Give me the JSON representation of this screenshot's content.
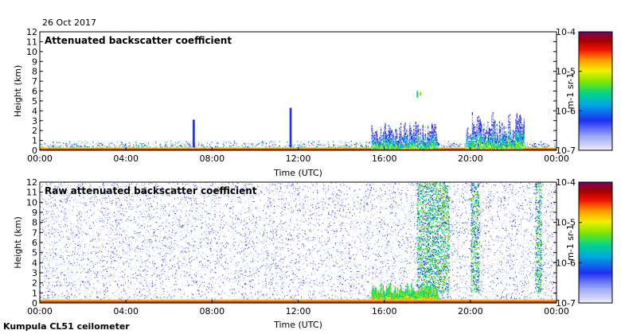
{
  "date_label": "26 Oct 2017",
  "footer_label": "Kumpula CL51 ceilometer",
  "chart_data": [
    {
      "type": "heatmap",
      "title": "Attenuated backscatter coefficient",
      "xlabel": "Time (UTC)",
      "ylabel": "Height (km)",
      "x_ticks": [
        "00:00",
        "04:00",
        "08:00",
        "12:00",
        "16:00",
        "20:00",
        "00:00"
      ],
      "y_ticks": [
        "0",
        "1",
        "2",
        "3",
        "4",
        "5",
        "6",
        "7",
        "8",
        "9",
        "10",
        "11",
        "12"
      ],
      "xlim_hours": [
        0,
        24
      ],
      "ylim_km": [
        0,
        12
      ],
      "colorbar": {
        "scale": "log",
        "ticks": [
          "10-4",
          "10-5",
          "10-6",
          "10-7"
        ],
        "range": [
          1e-07,
          0.0001
        ],
        "label": "m-1 sr-1"
      },
      "features": [
        {
          "desc": "surface aerosol layer",
          "t_start": 0,
          "t_end": 24,
          "top_km": 0.5
        },
        {
          "desc": "precipitation streak",
          "t_start": 7.1,
          "t_end": 7.2,
          "top_km": 3.1
        },
        {
          "desc": "precipitation streak",
          "t_start": 11.6,
          "t_end": 11.7,
          "top_km": 4.3
        },
        {
          "desc": "cloud",
          "t_start": 15.4,
          "t_end": 18.5,
          "top_km": 3.0
        },
        {
          "desc": "elevated cloud fragment",
          "t_start": 17.5,
          "t_end": 17.8,
          "top_km": 6.0
        },
        {
          "desc": "cloud",
          "t_start": 19.8,
          "t_end": 22.5,
          "top_km": 3.9
        }
      ]
    },
    {
      "type": "heatmap",
      "title": "Raw attenuated backscatter coefficient",
      "xlabel": "Time (UTC)",
      "ylabel": "Height (km)",
      "x_ticks": [
        "00:00",
        "04:00",
        "08:00",
        "12:00",
        "16:00",
        "20:00",
        "00:00"
      ],
      "y_ticks": [
        "0",
        "1",
        "2",
        "3",
        "4",
        "5",
        "6",
        "7",
        "8",
        "9",
        "10",
        "11",
        "12"
      ],
      "xlim_hours": [
        0,
        24
      ],
      "ylim_km": [
        0,
        12
      ],
      "colorbar": {
        "scale": "log",
        "ticks": [
          "10-4",
          "10-5",
          "10-6",
          "10-7"
        ],
        "range": [
          1e-07,
          0.0001
        ],
        "label": "m-1 sr-1"
      },
      "features": [
        {
          "desc": "background noise",
          "t_start": 0,
          "t_end": 24,
          "top_km": 12
        },
        {
          "desc": "strong noise column",
          "t_start": 17.5,
          "t_end": 19.0,
          "top_km": 12
        },
        {
          "desc": "strong noise column",
          "t_start": 20.0,
          "t_end": 20.4,
          "top_km": 12
        },
        {
          "desc": "strong noise column",
          "t_start": 23.0,
          "t_end": 23.3,
          "top_km": 12
        }
      ]
    }
  ]
}
